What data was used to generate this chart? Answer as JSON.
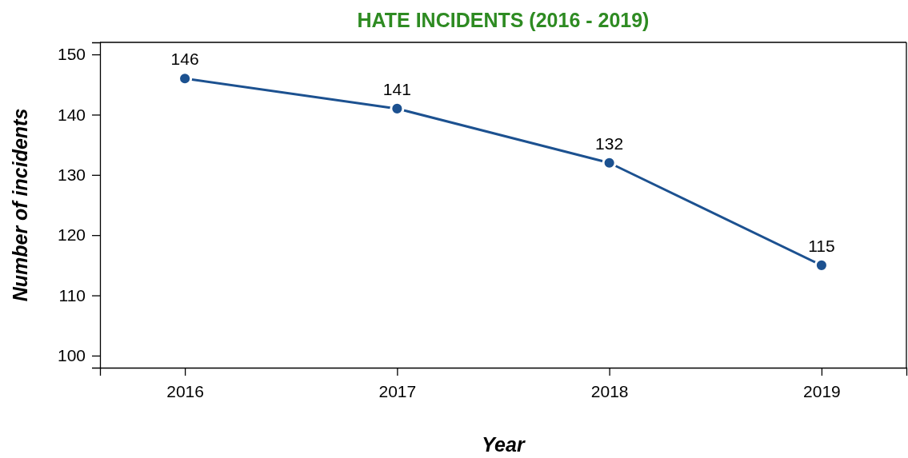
{
  "chart_data": {
    "type": "line",
    "title": "HATE INCIDENTS (2016 - 2019)",
    "xlabel": "Year",
    "ylabel": "Number of incidents",
    "x": [
      2016,
      2017,
      2018,
      2019
    ],
    "series": [
      {
        "color": "#1c5190",
        "values": [
          146,
          141,
          132,
          115
        ]
      }
    ],
    "xlim": [
      2015.6,
      2019.4
    ],
    "xticks": [
      2016,
      2017,
      2018,
      2019
    ],
    "ylim": [
      98,
      152
    ],
    "yticks": [
      100,
      110,
      120,
      130,
      140,
      150
    ],
    "marker": "circle",
    "line_style": "solid",
    "data_labels": true,
    "grid": false
  }
}
